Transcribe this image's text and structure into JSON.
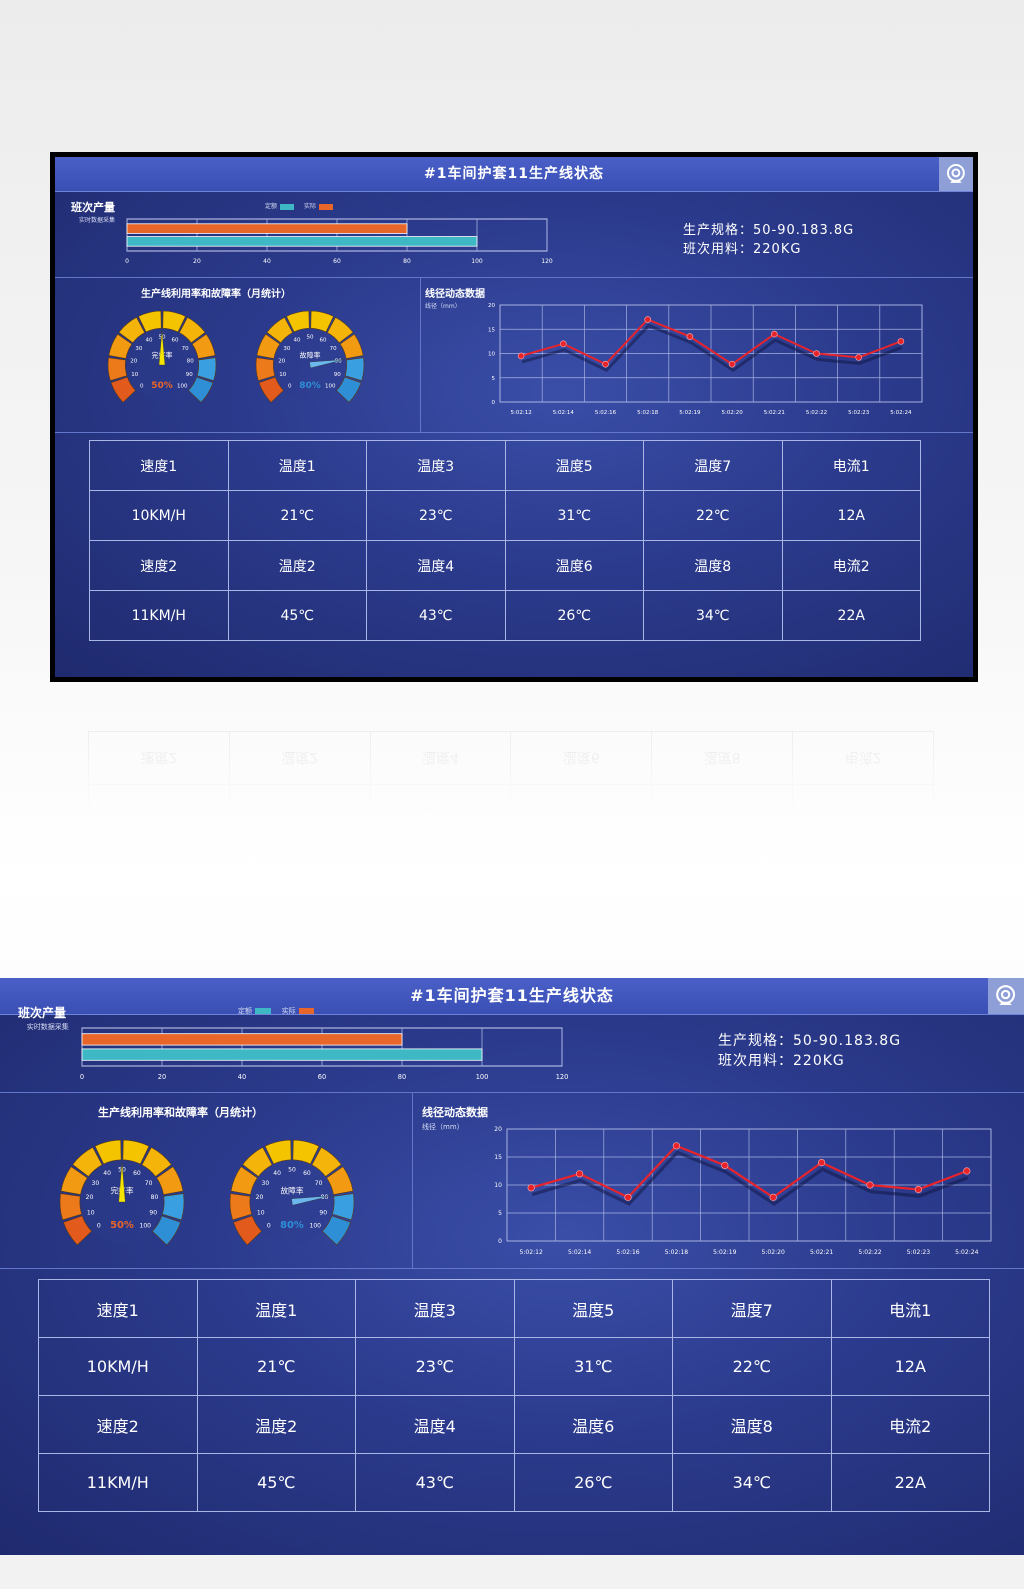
{
  "title": "#1车间护套11生产线状态",
  "icons": {
    "title_right": "webcam-icon"
  },
  "output": {
    "title": "班次产量",
    "subtitle": "实时数据采集",
    "legend_planned": "定额",
    "legend_actual": "实际",
    "planned_value": 100,
    "actual_value": 80,
    "axis_max": 120,
    "ticks": [
      "0",
      "20",
      "40",
      "60",
      "80",
      "100",
      "120"
    ]
  },
  "specs": {
    "spec_line": "生产规格：50-90.183.8G",
    "material_line": "班次用料：220KG"
  },
  "gauges": {
    "title": "生产线利用率和故障率（月统计）",
    "items": [
      {
        "name": "完好率",
        "value_label": "50%",
        "value": 50
      },
      {
        "name": "故障率",
        "value_label": "80%",
        "value": 80
      }
    ],
    "ticks": [
      "10",
      "20",
      "30",
      "40",
      "50",
      "60",
      "70",
      "80",
      "90",
      "100"
    ],
    "zero": "0"
  },
  "chart_data": {
    "type": "line",
    "title": "线径动态数据",
    "ylabel": "线径（mm）",
    "x": [
      "5:02:12",
      "5:02:14",
      "5:02:16",
      "5:02:18",
      "5:02:19",
      "5:02:20",
      "5:02:21",
      "5:02:22",
      "5:02:23",
      "5:02:24"
    ],
    "values": [
      9.5,
      12,
      7.8,
      17,
      13.5,
      7.8,
      14,
      10,
      9.2,
      12.5
    ],
    "ylim": [
      0,
      20
    ],
    "yticks": [
      "0",
      "5",
      "10",
      "15",
      "20"
    ],
    "grid": true,
    "color": "#e8232a"
  },
  "table": {
    "rows": [
      [
        "速度1",
        "温度1",
        "温度3",
        "温度5",
        "温度7",
        "电流1"
      ],
      [
        "10KM/H",
        "21℃",
        "23℃",
        "31℃",
        "22℃",
        "12A"
      ],
      [
        "速度2",
        "温度2",
        "温度4",
        "温度6",
        "温度8",
        "电流2"
      ],
      [
        "11KM/H",
        "45℃",
        "43℃",
        "26℃",
        "34℃",
        "22A"
      ]
    ]
  },
  "colors": {
    "planned": "#3fb8c6",
    "actual": "#e8662a",
    "gauge_red": "#e25a1c",
    "gauge_yellow": "#f5c400",
    "gauge_blue": "#2f8fd6",
    "needle1": "#f5e400",
    "needle2": "#6cb8ee"
  }
}
